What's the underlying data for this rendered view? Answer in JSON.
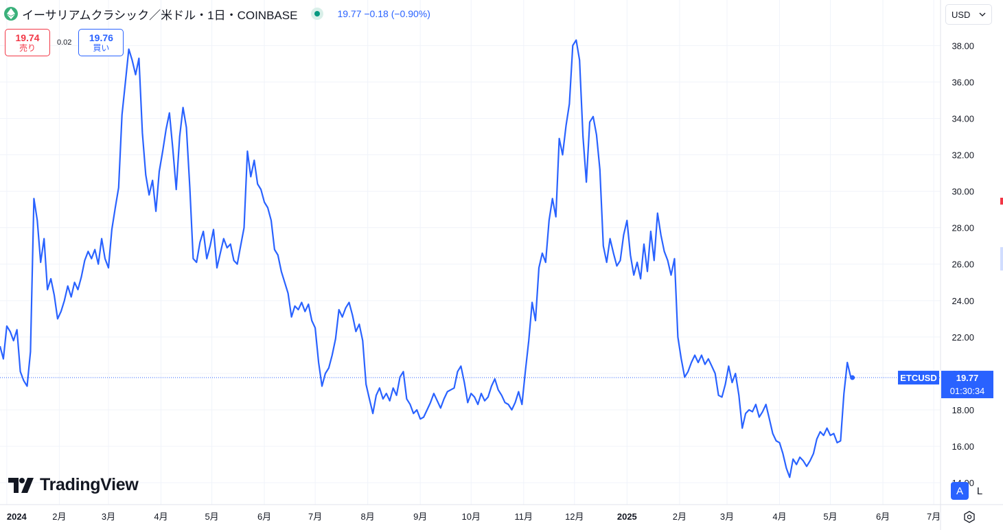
{
  "header": {
    "symbol_title": "イーサリアムクラシック／米ドル・1日・COINBASE",
    "price_change": "19.77  −0.18 (−0.90%)"
  },
  "trade": {
    "sell_price": "19.74",
    "sell_label": "売り",
    "spread": "0.02",
    "buy_price": "19.76",
    "buy_label": "買い"
  },
  "currency": "USD",
  "logo_text": "TradingView",
  "scale_buttons": {
    "auto": "A",
    "log": "L"
  },
  "colors": {
    "line": "#2962ff",
    "sell": "#f23645",
    "buy": "#2962ff",
    "status": "#089981"
  },
  "chart_data": {
    "type": "line",
    "symbol": "ETCUSD",
    "x_tick_labels": [
      "2024",
      "2月",
      "3月",
      "4月",
      "5月",
      "6月",
      "7月",
      "8月",
      "9月",
      "10月",
      "11月",
      "12月",
      "2025",
      "2月",
      "3月",
      "4月",
      "5月",
      "6月",
      "7月"
    ],
    "x_tick_dates": [
      "2024-01-01",
      "2024-02-01",
      "2024-03-01",
      "2024-04-01",
      "2024-05-01",
      "2024-06-01",
      "2024-07-01",
      "2024-08-01",
      "2024-09-01",
      "2024-10-01",
      "2024-11-01",
      "2024-12-01",
      "2025-01-01",
      "2025-02-01",
      "2025-03-01",
      "2025-04-01",
      "2025-05-01",
      "2025-06-01",
      "2025-07-01"
    ],
    "y_tick_values": [
      14,
      16,
      18,
      20,
      22,
      24,
      26,
      28,
      30,
      32,
      34,
      36,
      38
    ],
    "y_tick_labels": [
      "14.00",
      "16.00",
      "18.00",
      "20.00",
      "22.00",
      "24.00",
      "26.00",
      "28.00",
      "30.00",
      "32.00",
      "34.00",
      "36.00",
      "38.00"
    ],
    "ylim": [
      12.8,
      40.5
    ],
    "xlim": [
      "2023-12-28",
      "2025-07-05"
    ],
    "last_value": "19.77",
    "countdown": "01:30:34",
    "grid": true,
    "points": [
      [
        "2023-12-28",
        21.5
      ],
      [
        "2023-12-30",
        20.8
      ],
      [
        "2024-01-01",
        22.6
      ],
      [
        "2024-01-03",
        22.3
      ],
      [
        "2024-01-05",
        21.8
      ],
      [
        "2024-01-07",
        22.4
      ],
      [
        "2024-01-09",
        20.1
      ],
      [
        "2024-01-11",
        19.6
      ],
      [
        "2024-01-13",
        19.3
      ],
      [
        "2024-01-15",
        21.2
      ],
      [
        "2024-01-17",
        29.6
      ],
      [
        "2024-01-19",
        28.4
      ],
      [
        "2024-01-21",
        26.1
      ],
      [
        "2024-01-23",
        27.4
      ],
      [
        "2024-01-25",
        24.6
      ],
      [
        "2024-01-27",
        25.2
      ],
      [
        "2024-01-29",
        24.3
      ],
      [
        "2024-01-31",
        23.0
      ],
      [
        "2024-02-02",
        23.4
      ],
      [
        "2024-02-04",
        24.0
      ],
      [
        "2024-02-06",
        24.8
      ],
      [
        "2024-02-08",
        24.2
      ],
      [
        "2024-02-10",
        25.0
      ],
      [
        "2024-02-12",
        24.6
      ],
      [
        "2024-02-14",
        25.3
      ],
      [
        "2024-02-16",
        26.2
      ],
      [
        "2024-02-18",
        26.7
      ],
      [
        "2024-02-20",
        26.3
      ],
      [
        "2024-02-22",
        26.8
      ],
      [
        "2024-02-24",
        26.0
      ],
      [
        "2024-02-26",
        27.4
      ],
      [
        "2024-02-28",
        26.3
      ],
      [
        "2024-03-01",
        25.8
      ],
      [
        "2024-03-03",
        27.9
      ],
      [
        "2024-03-05",
        29.1
      ],
      [
        "2024-03-07",
        30.2
      ],
      [
        "2024-03-09",
        34.2
      ],
      [
        "2024-03-11",
        36.0
      ],
      [
        "2024-03-13",
        37.8
      ],
      [
        "2024-03-15",
        37.2
      ],
      [
        "2024-03-17",
        36.4
      ],
      [
        "2024-03-19",
        37.3
      ],
      [
        "2024-03-21",
        33.2
      ],
      [
        "2024-03-23",
        30.9
      ],
      [
        "2024-03-25",
        29.8
      ],
      [
        "2024-03-27",
        30.6
      ],
      [
        "2024-03-29",
        28.9
      ],
      [
        "2024-03-31",
        31.1
      ],
      [
        "2024-04-02",
        32.2
      ],
      [
        "2024-04-04",
        33.4
      ],
      [
        "2024-04-06",
        34.3
      ],
      [
        "2024-04-08",
        32.3
      ],
      [
        "2024-04-10",
        30.1
      ],
      [
        "2024-04-12",
        33.0
      ],
      [
        "2024-04-14",
        34.6
      ],
      [
        "2024-04-16",
        33.5
      ],
      [
        "2024-04-18",
        30.2
      ],
      [
        "2024-04-20",
        26.3
      ],
      [
        "2024-04-22",
        26.1
      ],
      [
        "2024-04-24",
        27.2
      ],
      [
        "2024-04-26",
        27.8
      ],
      [
        "2024-04-28",
        26.3
      ],
      [
        "2024-04-30",
        27.0
      ],
      [
        "2024-05-02",
        27.9
      ],
      [
        "2024-05-04",
        25.8
      ],
      [
        "2024-05-06",
        26.6
      ],
      [
        "2024-05-08",
        27.4
      ],
      [
        "2024-05-10",
        26.9
      ],
      [
        "2024-05-12",
        27.1
      ],
      [
        "2024-05-14",
        26.2
      ],
      [
        "2024-05-16",
        26.0
      ],
      [
        "2024-05-18",
        27.0
      ],
      [
        "2024-05-20",
        28.0
      ],
      [
        "2024-05-22",
        32.2
      ],
      [
        "2024-05-24",
        30.8
      ],
      [
        "2024-05-26",
        31.7
      ],
      [
        "2024-05-28",
        30.4
      ],
      [
        "2024-05-30",
        30.1
      ],
      [
        "2024-06-01",
        29.4
      ],
      [
        "2024-06-03",
        29.1
      ],
      [
        "2024-06-05",
        28.4
      ],
      [
        "2024-06-07",
        26.8
      ],
      [
        "2024-06-09",
        26.5
      ],
      [
        "2024-06-11",
        25.6
      ],
      [
        "2024-06-13",
        25.0
      ],
      [
        "2024-06-15",
        24.4
      ],
      [
        "2024-06-17",
        23.1
      ],
      [
        "2024-06-19",
        23.7
      ],
      [
        "2024-06-21",
        23.5
      ],
      [
        "2024-06-23",
        23.9
      ],
      [
        "2024-06-25",
        23.4
      ],
      [
        "2024-06-27",
        23.8
      ],
      [
        "2024-06-29",
        22.9
      ],
      [
        "2024-07-01",
        22.5
      ],
      [
        "2024-07-03",
        20.6
      ],
      [
        "2024-07-05",
        19.3
      ],
      [
        "2024-07-07",
        20.0
      ],
      [
        "2024-07-09",
        20.3
      ],
      [
        "2024-07-11",
        21.0
      ],
      [
        "2024-07-13",
        21.9
      ],
      [
        "2024-07-15",
        23.5
      ],
      [
        "2024-07-17",
        23.1
      ],
      [
        "2024-07-19",
        23.6
      ],
      [
        "2024-07-21",
        23.9
      ],
      [
        "2024-07-23",
        23.2
      ],
      [
        "2024-07-25",
        22.3
      ],
      [
        "2024-07-27",
        22.7
      ],
      [
        "2024-07-29",
        21.8
      ],
      [
        "2024-07-31",
        19.4
      ],
      [
        "2024-08-02",
        18.6
      ],
      [
        "2024-08-04",
        17.8
      ],
      [
        "2024-08-06",
        18.8
      ],
      [
        "2024-08-08",
        19.2
      ],
      [
        "2024-08-10",
        18.6
      ],
      [
        "2024-08-12",
        18.9
      ],
      [
        "2024-08-14",
        18.5
      ],
      [
        "2024-08-16",
        19.2
      ],
      [
        "2024-08-18",
        18.8
      ],
      [
        "2024-08-20",
        19.8
      ],
      [
        "2024-08-22",
        20.1
      ],
      [
        "2024-08-24",
        18.6
      ],
      [
        "2024-08-26",
        18.3
      ],
      [
        "2024-08-28",
        17.8
      ],
      [
        "2024-08-30",
        18.0
      ],
      [
        "2024-09-01",
        17.5
      ],
      [
        "2024-09-03",
        17.6
      ],
      [
        "2024-09-05",
        18.0
      ],
      [
        "2024-09-07",
        18.4
      ],
      [
        "2024-09-09",
        18.9
      ],
      [
        "2024-09-11",
        18.5
      ],
      [
        "2024-09-13",
        18.1
      ],
      [
        "2024-09-15",
        18.6
      ],
      [
        "2024-09-17",
        19.0
      ],
      [
        "2024-09-19",
        19.1
      ],
      [
        "2024-09-21",
        19.2
      ],
      [
        "2024-09-23",
        20.1
      ],
      [
        "2024-09-25",
        20.4
      ],
      [
        "2024-09-27",
        19.5
      ],
      [
        "2024-09-29",
        18.4
      ],
      [
        "2024-10-01",
        18.9
      ],
      [
        "2024-10-03",
        18.7
      ],
      [
        "2024-10-05",
        18.3
      ],
      [
        "2024-10-07",
        18.9
      ],
      [
        "2024-10-09",
        18.5
      ],
      [
        "2024-10-11",
        18.7
      ],
      [
        "2024-10-13",
        19.3
      ],
      [
        "2024-10-15",
        19.7
      ],
      [
        "2024-10-17",
        19.1
      ],
      [
        "2024-10-19",
        18.8
      ],
      [
        "2024-10-21",
        18.4
      ],
      [
        "2024-10-23",
        18.3
      ],
      [
        "2024-10-25",
        18.0
      ],
      [
        "2024-10-27",
        18.4
      ],
      [
        "2024-10-29",
        19.0
      ],
      [
        "2024-10-31",
        18.3
      ],
      [
        "2024-11-02",
        20.1
      ],
      [
        "2024-11-04",
        21.8
      ],
      [
        "2024-11-06",
        23.9
      ],
      [
        "2024-11-08",
        22.9
      ],
      [
        "2024-11-10",
        25.8
      ],
      [
        "2024-11-12",
        26.6
      ],
      [
        "2024-11-14",
        26.1
      ],
      [
        "2024-11-16",
        28.4
      ],
      [
        "2024-11-18",
        29.6
      ],
      [
        "2024-11-20",
        28.6
      ],
      [
        "2024-11-22",
        32.9
      ],
      [
        "2024-11-24",
        32.0
      ],
      [
        "2024-11-26",
        33.6
      ],
      [
        "2024-11-28",
        34.8
      ],
      [
        "2024-11-30",
        38.0
      ],
      [
        "2024-12-02",
        38.3
      ],
      [
        "2024-12-04",
        37.2
      ],
      [
        "2024-12-06",
        33.0
      ],
      [
        "2024-12-08",
        30.5
      ],
      [
        "2024-12-10",
        33.8
      ],
      [
        "2024-12-12",
        34.1
      ],
      [
        "2024-12-14",
        33.1
      ],
      [
        "2024-12-16",
        31.2
      ],
      [
        "2024-12-18",
        27.0
      ],
      [
        "2024-12-20",
        26.1
      ],
      [
        "2024-12-22",
        27.4
      ],
      [
        "2024-12-24",
        26.6
      ],
      [
        "2024-12-26",
        25.9
      ],
      [
        "2024-12-28",
        26.2
      ],
      [
        "2024-12-30",
        27.6
      ],
      [
        "2025-01-01",
        28.4
      ],
      [
        "2025-01-03",
        26.5
      ],
      [
        "2025-01-05",
        25.4
      ],
      [
        "2025-01-07",
        26.1
      ],
      [
        "2025-01-09",
        25.2
      ],
      [
        "2025-01-11",
        27.1
      ],
      [
        "2025-01-13",
        25.6
      ],
      [
        "2025-01-15",
        27.8
      ],
      [
        "2025-01-17",
        26.2
      ],
      [
        "2025-01-19",
        28.8
      ],
      [
        "2025-01-21",
        27.6
      ],
      [
        "2025-01-23",
        26.7
      ],
      [
        "2025-01-25",
        26.2
      ],
      [
        "2025-01-27",
        25.4
      ],
      [
        "2025-01-29",
        26.3
      ],
      [
        "2025-01-31",
        22.0
      ],
      [
        "2025-02-02",
        20.8
      ],
      [
        "2025-02-04",
        19.8
      ],
      [
        "2025-02-06",
        20.1
      ],
      [
        "2025-02-08",
        20.6
      ],
      [
        "2025-02-10",
        21.0
      ],
      [
        "2025-02-12",
        20.6
      ],
      [
        "2025-02-14",
        21.0
      ],
      [
        "2025-02-16",
        20.5
      ],
      [
        "2025-02-18",
        20.8
      ],
      [
        "2025-02-20",
        20.4
      ],
      [
        "2025-02-22",
        20.0
      ],
      [
        "2025-02-24",
        18.8
      ],
      [
        "2025-02-26",
        18.7
      ],
      [
        "2025-02-28",
        19.4
      ],
      [
        "2025-03-02",
        20.4
      ],
      [
        "2025-03-04",
        19.5
      ],
      [
        "2025-03-06",
        20.0
      ],
      [
        "2025-03-08",
        18.8
      ],
      [
        "2025-03-10",
        17.0
      ],
      [
        "2025-03-12",
        17.8
      ],
      [
        "2025-03-14",
        18.0
      ],
      [
        "2025-03-16",
        17.9
      ],
      [
        "2025-03-18",
        18.3
      ],
      [
        "2025-03-20",
        17.6
      ],
      [
        "2025-03-22",
        17.9
      ],
      [
        "2025-03-24",
        18.3
      ],
      [
        "2025-03-26",
        17.5
      ],
      [
        "2025-03-28",
        16.7
      ],
      [
        "2025-03-30",
        16.3
      ],
      [
        "2025-04-01",
        16.2
      ],
      [
        "2025-04-03",
        15.6
      ],
      [
        "2025-04-05",
        14.8
      ],
      [
        "2025-04-07",
        14.3
      ],
      [
        "2025-04-09",
        15.3
      ],
      [
        "2025-04-11",
        15.0
      ],
      [
        "2025-04-13",
        15.4
      ],
      [
        "2025-04-15",
        15.2
      ],
      [
        "2025-04-17",
        14.9
      ],
      [
        "2025-04-19",
        15.2
      ],
      [
        "2025-04-21",
        15.6
      ],
      [
        "2025-04-23",
        16.4
      ],
      [
        "2025-04-25",
        16.8
      ],
      [
        "2025-04-27",
        16.6
      ],
      [
        "2025-04-29",
        17.0
      ],
      [
        "2025-05-01",
        16.6
      ],
      [
        "2025-05-03",
        16.7
      ],
      [
        "2025-05-05",
        16.2
      ],
      [
        "2025-05-07",
        16.3
      ],
      [
        "2025-05-09",
        18.9
      ],
      [
        "2025-05-11",
        20.6
      ],
      [
        "2025-05-13",
        19.8
      ],
      [
        "2025-05-14",
        19.77
      ]
    ]
  }
}
